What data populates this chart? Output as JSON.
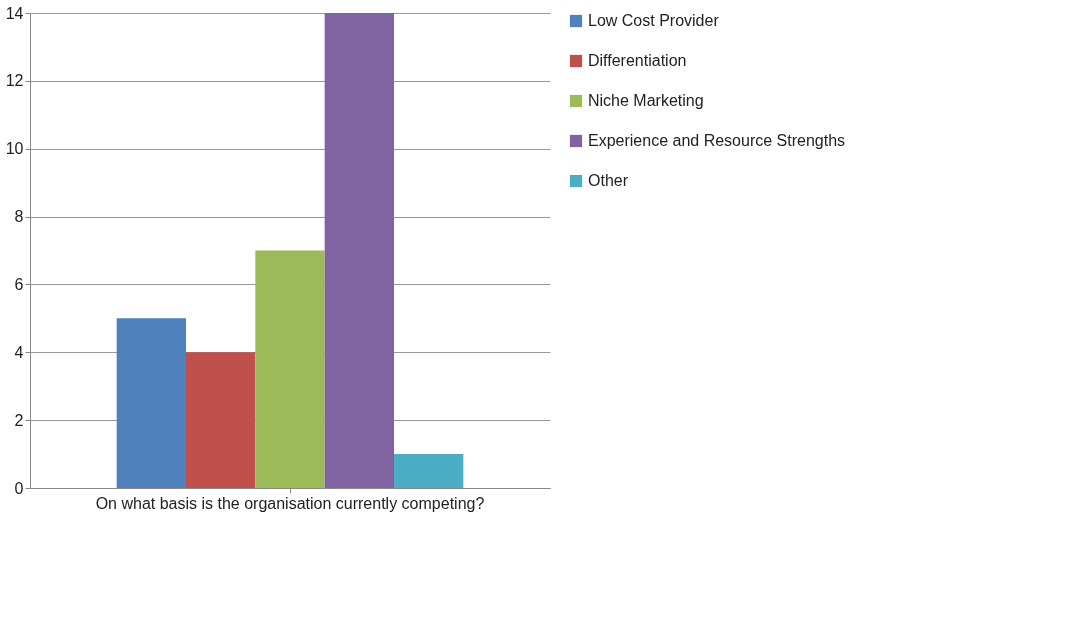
{
  "chart_data": {
    "type": "bar",
    "categories": [
      "On what basis is the organisation currently competing?"
    ],
    "series": [
      {
        "name": "Low Cost Provider",
        "color": "#4f81bd",
        "values": [
          5
        ]
      },
      {
        "name": "Differentiation",
        "color": "#c0504d",
        "values": [
          4
        ]
      },
      {
        "name": "Niche Marketing",
        "color": "#9bbb59",
        "values": [
          7
        ]
      },
      {
        "name": "Experience and Resource Strengths",
        "color": "#8064a2",
        "values": [
          14
        ]
      },
      {
        "name": "Other",
        "color": "#4bacc6",
        "values": [
          1
        ]
      }
    ],
    "ylim": [
      0,
      14
    ],
    "yticks": [
      0,
      2,
      4,
      6,
      8,
      10,
      12,
      14
    ],
    "grid": "y",
    "legend": "right"
  }
}
